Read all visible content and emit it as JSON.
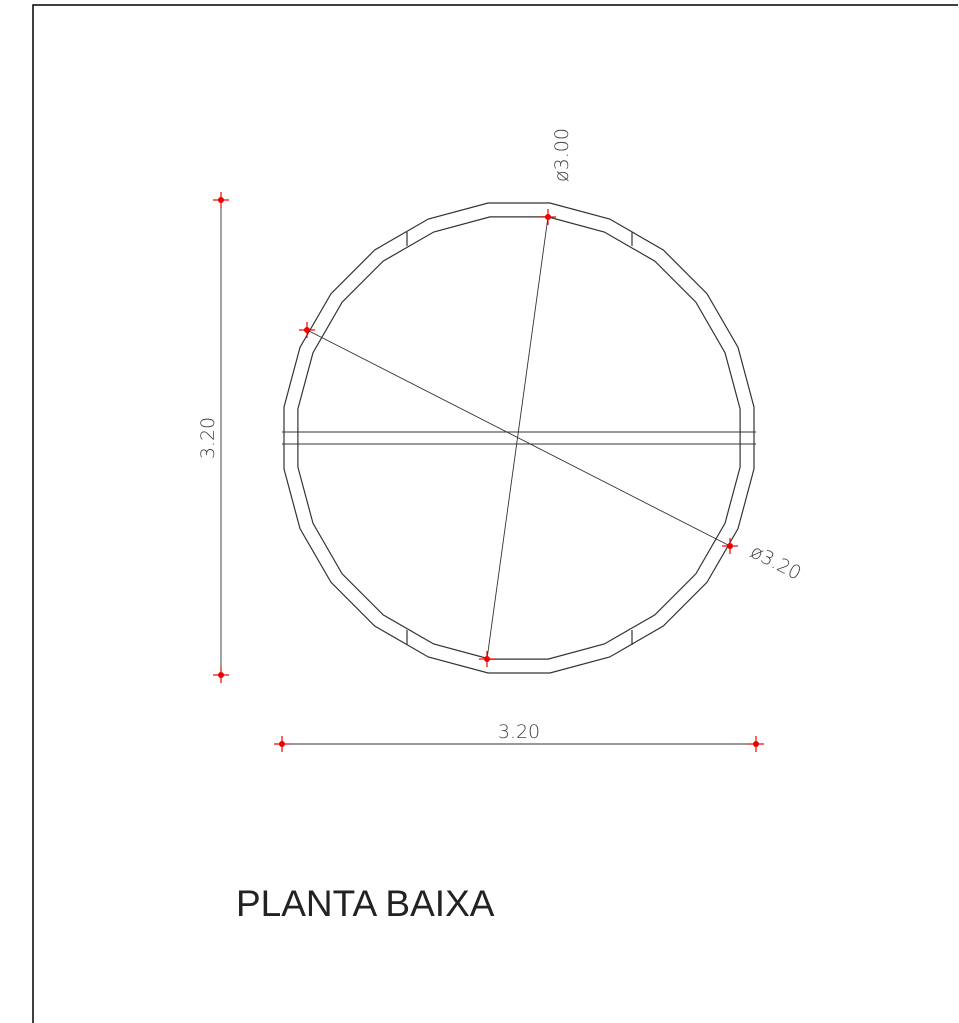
{
  "dimensions": {
    "diameter_inner": "ø3.00",
    "diameter_outer": "ø3.20",
    "height": "3.20",
    "width": "3.20"
  },
  "title": "PLANTA BAIXA"
}
